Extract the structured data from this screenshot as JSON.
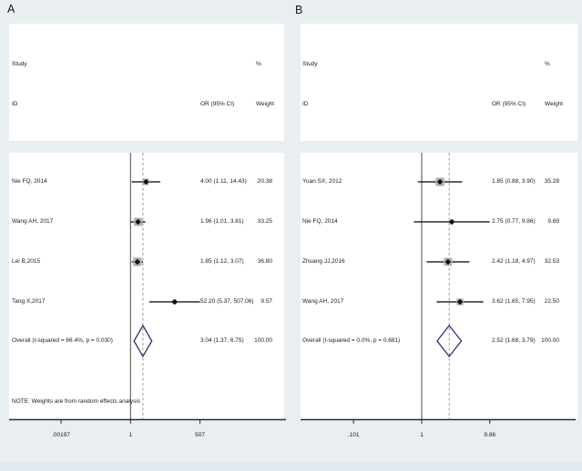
{
  "figure_title": "Forest plot, two panels",
  "colors": {
    "background": "#e9eef1",
    "panel": "#ffffff",
    "line": "#000000",
    "null_line": "#4a4a4a",
    "dashed_line": "#9a9a9a",
    "weight_box": "#b0b0b0",
    "marker": "#111111",
    "diamond_stroke": "#2e2e78",
    "axis": "#2b2b2b",
    "text": "#1b1b1b"
  },
  "chart_data": [
    {
      "type": "forest",
      "panel_label": "A",
      "effect_measure": "OR",
      "scale": "log",
      "header": {
        "study": "Study",
        "id": "ID",
        "or_ci": "OR (95% CI)",
        "percent": "%",
        "weight": "Weight"
      },
      "studies": [
        {
          "id": "Nie FQ, 2014",
          "or": 4.0,
          "ci_low": 1.11,
          "ci_high": 14.43,
          "or_text": "4.00 (1.11, 14.43)",
          "weight": 20.38,
          "weight_text": "20.38"
        },
        {
          "id": "Wang AH, 2017",
          "or": 1.96,
          "ci_low": 1.01,
          "ci_high": 3.81,
          "or_text": "1.96 (1.01, 3.81)",
          "weight": 33.25,
          "weight_text": "33.25"
        },
        {
          "id": "Lei B,2015",
          "or": 1.85,
          "ci_low": 1.12,
          "ci_high": 3.07,
          "or_text": "1.85 (1.12, 3.07)",
          "weight": 36.8,
          "weight_text": "36.80"
        },
        {
          "id": "Tang X,2017",
          "or": 52.2,
          "ci_low": 5.37,
          "ci_high": 507.06,
          "or_text": "52.20 (5.37, 507.06)",
          "weight": 9.57,
          "weight_text": "9.57"
        }
      ],
      "overall": {
        "label": "Overall (I-squared = 66.4%, p = 0.030)",
        "or": 3.04,
        "ci_low": 1.37,
        "ci_high": 6.75,
        "or_text": "3.04 (1.37, 6.75)",
        "weight_text": "100.00"
      },
      "note": "NOTE: Weights are from random effects analysis",
      "axis_ticks": [
        {
          "value": 0.00197,
          "label": ".00197"
        },
        {
          "value": 1,
          "label": "1"
        },
        {
          "value": 507,
          "label": "507"
        }
      ],
      "axis_range": [
        0.00197,
        507
      ]
    },
    {
      "type": "forest",
      "panel_label": "B",
      "effect_measure": "OR",
      "scale": "log",
      "header": {
        "study": "Study",
        "id": "ID",
        "or_ci": "OR (95% CI)",
        "percent": "%",
        "weight": "Weight"
      },
      "studies": [
        {
          "id": "Yuan SX, 2012",
          "or": 1.85,
          "ci_low": 0.88,
          "ci_high": 3.9,
          "or_text": "1.85 (0.88, 3.90)",
          "weight": 35.28,
          "weight_text": "35.28"
        },
        {
          "id": "Nie FQ, 2014",
          "or": 2.75,
          "ci_low": 0.77,
          "ci_high": 9.86,
          "or_text": "2.75 (0.77, 9.86)",
          "weight": 9.69,
          "weight_text": "9.69"
        },
        {
          "id": "Zhuang JJ,2016",
          "or": 2.42,
          "ci_low": 1.18,
          "ci_high": 4.97,
          "or_text": "2.42 (1.18, 4.97)",
          "weight": 32.53,
          "weight_text": "32.53"
        },
        {
          "id": "Wang AH, 2017",
          "or": 3.62,
          "ci_low": 1.65,
          "ci_high": 7.95,
          "or_text": "3.62 (1.65, 7.95)",
          "weight": 22.5,
          "weight_text": "22.50"
        }
      ],
      "overall": {
        "label": "Overall (I-squared = 0.0%, p = 0.681)",
        "or": 2.52,
        "ci_low": 1.68,
        "ci_high": 3.79,
        "or_text": "2.52 (1.68, 3.79)",
        "weight_text": "100.00"
      },
      "note": null,
      "axis_ticks": [
        {
          "value": 0.101,
          "label": ".101"
        },
        {
          "value": 1,
          "label": "1"
        },
        {
          "value": 9.86,
          "label": "9.86"
        }
      ],
      "axis_range": [
        0.101,
        9.86
      ]
    }
  ]
}
